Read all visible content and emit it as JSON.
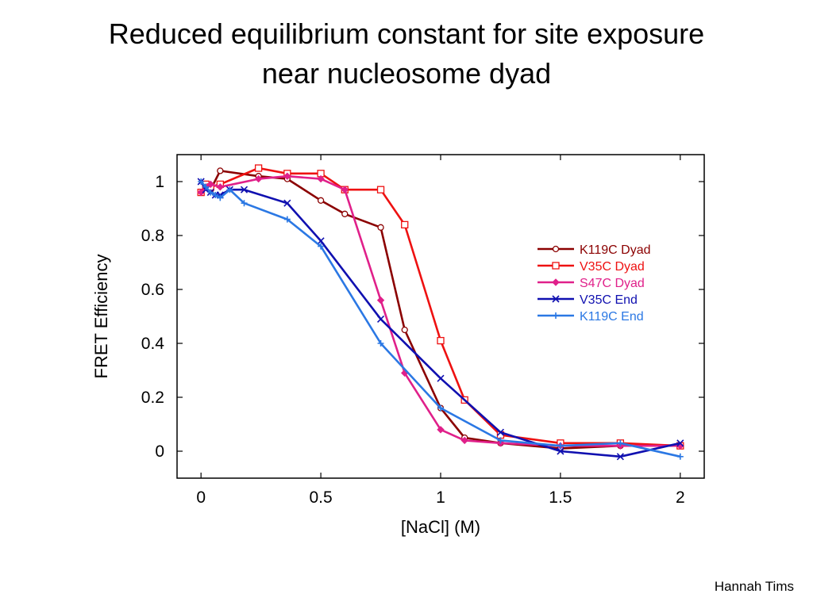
{
  "slide": {
    "title_line1": "Reduced equilibrium constant for site exposure",
    "title_line2": "near nucleosome dyad",
    "credit": "Hannah Tims"
  },
  "chart_data": {
    "type": "line",
    "xlabel": "[NaCl] (M)",
    "ylabel": "FRET Efficiency",
    "xlim": [
      -0.1,
      2.1
    ],
    "ylim": [
      -0.1,
      1.1
    ],
    "xticks": [
      0,
      0.5,
      1,
      1.5,
      2
    ],
    "xtick_labels": [
      "0",
      "0.5",
      "1",
      "1.5",
      "2"
    ],
    "yticks": [
      0,
      0.2,
      0.4,
      0.6,
      0.8,
      1
    ],
    "ytick_labels": [
      "0",
      "0.2",
      "0.4",
      "0.6",
      "0.8",
      "1"
    ],
    "grid": false,
    "legend_position": "right",
    "series": [
      {
        "name": "K119C Dyad",
        "color": "#8b0000",
        "marker": "circle",
        "x": [
          0,
          0.02,
          0.04,
          0.08,
          0.24,
          0.36,
          0.5,
          0.6,
          0.75,
          0.85,
          1.0,
          1.1,
          1.25,
          1.5,
          1.75,
          2.0
        ],
        "y": [
          0.96,
          0.98,
          0.97,
          1.04,
          1.02,
          1.01,
          0.93,
          0.88,
          0.83,
          0.45,
          0.16,
          0.05,
          0.03,
          0.01,
          0.02,
          0.02
        ]
      },
      {
        "name": "V35C Dyad",
        "color": "#ee1111",
        "marker": "square",
        "x": [
          0,
          0.02,
          0.04,
          0.08,
          0.24,
          0.36,
          0.5,
          0.6,
          0.75,
          0.85,
          1.0,
          1.1,
          1.25,
          1.5,
          1.75,
          2.0
        ],
        "y": [
          0.96,
          0.99,
          0.98,
          0.99,
          1.05,
          1.03,
          1.03,
          0.97,
          0.97,
          0.84,
          0.41,
          0.19,
          0.06,
          0.03,
          0.03,
          0.02
        ]
      },
      {
        "name": "S47C Dyad",
        "color": "#e0208a",
        "marker": "diamond",
        "x": [
          0,
          0.02,
          0.04,
          0.08,
          0.24,
          0.36,
          0.5,
          0.6,
          0.75,
          0.85,
          1.0,
          1.1,
          1.25,
          1.5,
          1.75,
          2.0
        ],
        "y": [
          0.96,
          0.98,
          0.99,
          0.98,
          1.01,
          1.02,
          1.01,
          0.97,
          0.56,
          0.29,
          0.08,
          0.04,
          0.03,
          0.02,
          0.02,
          0.02
        ]
      },
      {
        "name": "V35C End",
        "color": "#1010b0",
        "marker": "x",
        "x": [
          0,
          0.02,
          0.04,
          0.06,
          0.08,
          0.12,
          0.18,
          0.36,
          0.5,
          0.75,
          1.0,
          1.25,
          1.5,
          1.75,
          2.0
        ],
        "y": [
          1.0,
          0.97,
          0.96,
          0.95,
          0.95,
          0.97,
          0.97,
          0.92,
          0.78,
          0.49,
          0.27,
          0.07,
          0.0,
          -0.02,
          0.03
        ]
      },
      {
        "name": "K119C End",
        "color": "#2b78e4",
        "marker": "plus",
        "x": [
          0,
          0.02,
          0.04,
          0.06,
          0.08,
          0.12,
          0.18,
          0.36,
          0.5,
          0.75,
          1.0,
          1.25,
          1.5,
          1.75,
          2.0
        ],
        "y": [
          1.0,
          0.98,
          0.96,
          0.95,
          0.94,
          0.97,
          0.92,
          0.86,
          0.76,
          0.4,
          0.16,
          0.04,
          0.02,
          0.03,
          -0.02
        ]
      }
    ]
  }
}
